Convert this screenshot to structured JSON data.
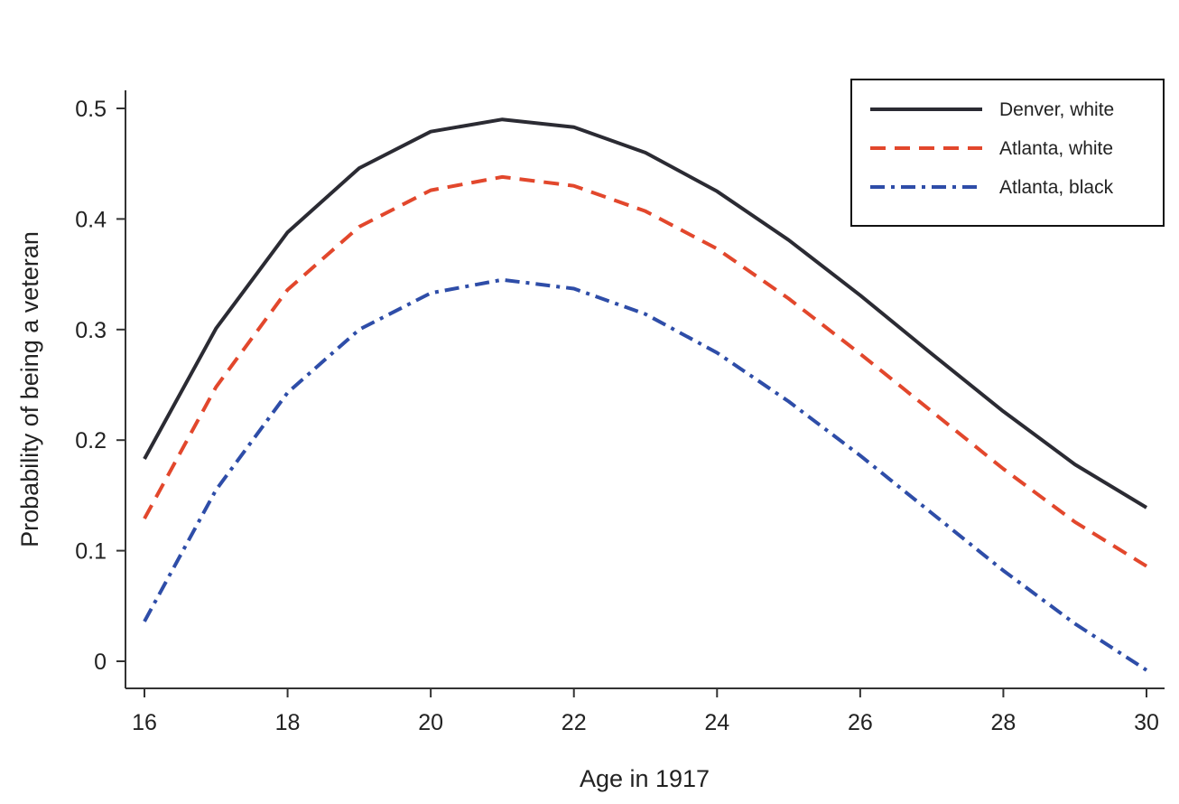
{
  "chart_data": {
    "type": "line",
    "title": "",
    "xlabel": "Age in 1917",
    "ylabel": "Probability of being a veteran",
    "xlim": [
      16,
      30
    ],
    "ylim": [
      -0.025,
      0.515
    ],
    "xticks": [
      16,
      18,
      20,
      22,
      24,
      26,
      28,
      30
    ],
    "xtick_labels": [
      "16",
      "18",
      "20",
      "22",
      "24",
      "26",
      "28",
      "30"
    ],
    "yticks": [
      0,
      0.1,
      0.2,
      0.3,
      0.4,
      0.5
    ],
    "ytick_labels": [
      "0",
      "0.1",
      "0.2",
      "0.3",
      "0.4",
      "0.5"
    ],
    "grid": false,
    "legend_position": "top-right",
    "x": [
      16,
      17,
      18,
      19,
      20,
      21,
      22,
      23,
      24,
      25,
      26,
      27,
      28,
      29,
      30
    ],
    "series": [
      {
        "name": "Denver, white",
        "color": "#2b2b33",
        "style": "solid",
        "values": [
          0.183,
          0.301,
          0.388,
          0.446,
          0.479,
          0.49,
          0.483,
          0.46,
          0.425,
          0.381,
          0.331,
          0.278,
          0.226,
          0.178,
          0.139
        ]
      },
      {
        "name": "Atlanta, white",
        "color": "#e2472c",
        "style": "dashed",
        "values": [
          0.129,
          0.248,
          0.336,
          0.393,
          0.426,
          0.438,
          0.43,
          0.407,
          0.373,
          0.328,
          0.278,
          0.226,
          0.174,
          0.126,
          0.086
        ]
      },
      {
        "name": "Atlanta, black",
        "color": "#2e4da8",
        "style": "dashdot",
        "values": [
          0.036,
          0.155,
          0.243,
          0.3,
          0.333,
          0.345,
          0.337,
          0.314,
          0.279,
          0.235,
          0.186,
          0.134,
          0.082,
          0.034,
          -0.008
        ]
      }
    ]
  }
}
